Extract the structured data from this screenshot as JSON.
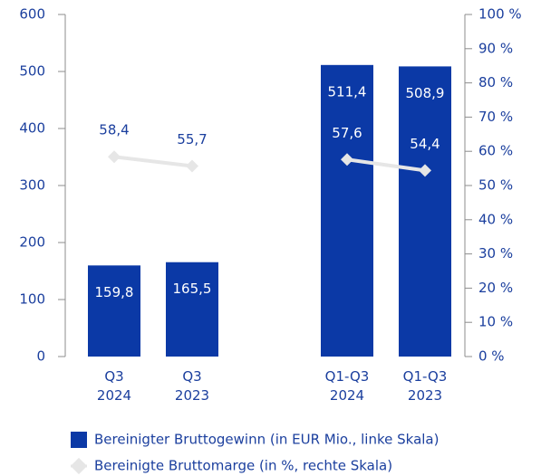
{
  "chart_data": {
    "type": "bar",
    "categories": [
      "Q3\n2024",
      "Q3\n2023",
      "Q1-Q3\n2024",
      "Q1-Q3\n2023"
    ],
    "series": [
      {
        "name": "Bereinigter Bruttogewinn (in EUR Mio., linke Skala)",
        "color": "#0b39a6",
        "type": "bar",
        "values": [
          159.8,
          165.5,
          511.4,
          508.9
        ],
        "value_labels": [
          "159,8",
          "165,5",
          "511,4",
          "508,9"
        ]
      },
      {
        "name": "Bereinigte Bruttomarge (in %, rechte Skala)",
        "color": "#e6e6e6",
        "type": "line",
        "axis": "y2",
        "values": [
          58.4,
          55.7,
          57.6,
          54.4
        ],
        "value_labels": [
          "58,4",
          "55,7",
          "57,6",
          "54,4"
        ]
      }
    ],
    "ylim": [
      0,
      600
    ],
    "yticks": [
      0,
      100,
      200,
      300,
      400,
      500,
      600
    ],
    "y2lim": [
      0,
      100
    ],
    "y2ticks": [
      {
        "value": 0,
        "label": "0 %"
      },
      {
        "value": 10,
        "label": "10 %"
      },
      {
        "value": 20,
        "label": "20 %"
      },
      {
        "value": 30,
        "label": "30 %"
      },
      {
        "value": 40,
        "label": "40 %"
      },
      {
        "value": 50,
        "label": "50 %"
      },
      {
        "value": 60,
        "label": "60 %"
      },
      {
        "value": 70,
        "label": "70 %"
      },
      {
        "value": 80,
        "label": "80 %"
      },
      {
        "value": 90,
        "label": "90 %"
      },
      {
        "value": 100,
        "label": "100 %"
      }
    ]
  }
}
